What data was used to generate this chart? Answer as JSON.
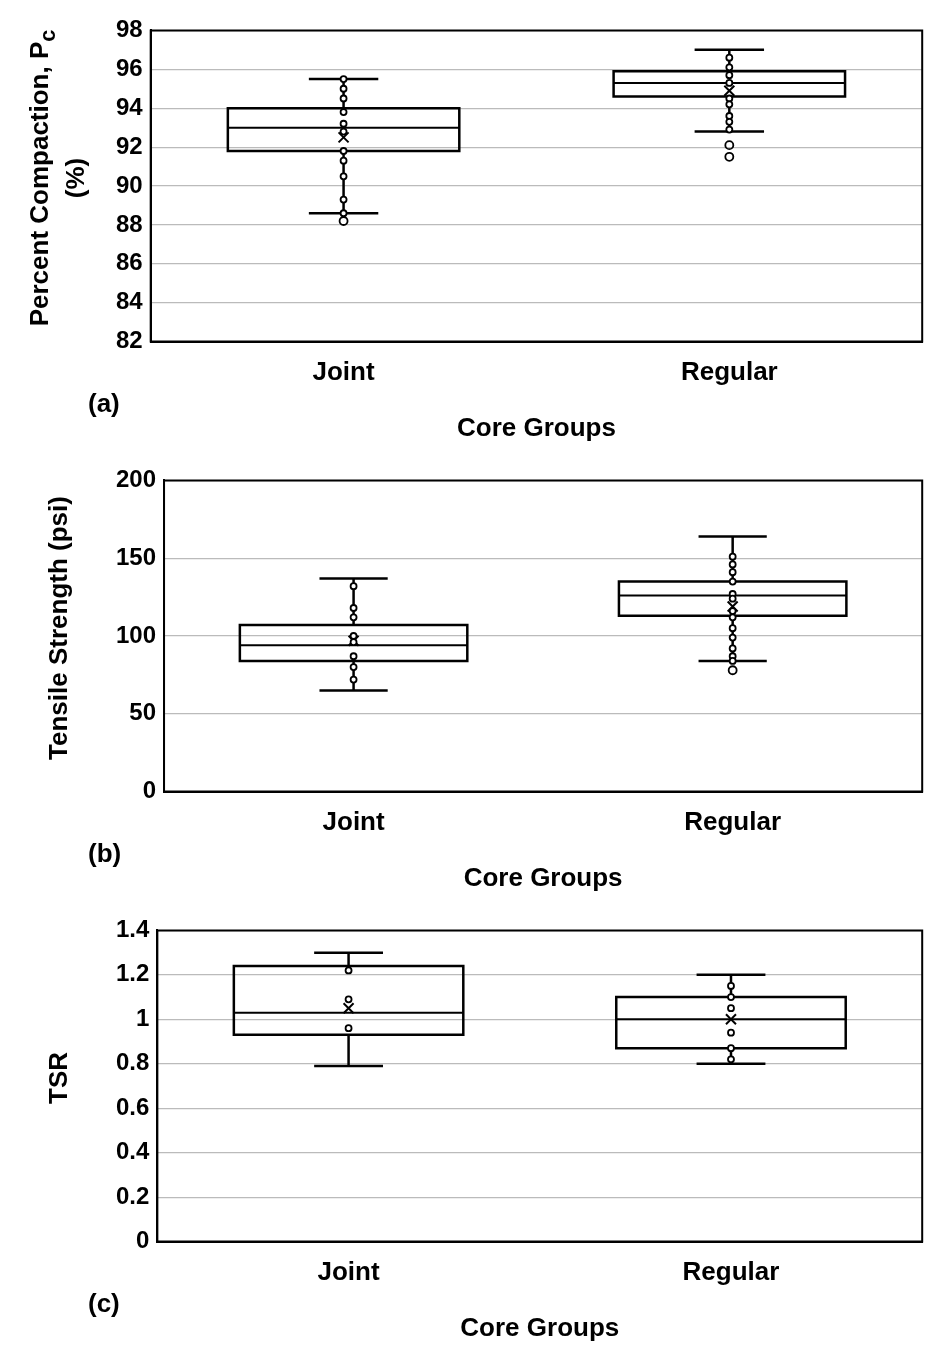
{
  "chart_data": [
    {
      "type": "box",
      "ylabel": "Percent Compaction, P$_{c}$ (%)",
      "xlabel": "Core Groups",
      "categories": [
        "Joint",
        "Regular"
      ],
      "ylim": [
        82,
        98
      ],
      "yticks": [
        82,
        84,
        86,
        88,
        90,
        92,
        94,
        96,
        98
      ],
      "grid": "y",
      "marker": "circle",
      "annotations": [
        "(a)"
      ],
      "boxes": [
        {
          "low": 88.6,
          "q1": 91.8,
          "median": 93,
          "q3": 94,
          "high": 95.5,
          "mean": 92.5,
          "outliers": [
            88.2
          ]
        },
        {
          "low": 92.8,
          "q1": 94.6,
          "median": 95.3,
          "q3": 95.9,
          "high": 97,
          "mean": 94.9,
          "outliers": [
            92.1,
            91.5
          ]
        }
      ],
      "series": [
        {
          "type": "scatter",
          "color": "#000000",
          "x": [
            "Joint",
            "Joint",
            "Joint",
            "Joint",
            "Joint",
            "Joint",
            "Joint",
            "Joint",
            "Joint",
            "Joint",
            "Joint",
            "Regular",
            "Regular",
            "Regular",
            "Regular",
            "Regular",
            "Regular",
            "Regular",
            "Regular",
            "Regular",
            "Regular"
          ],
          "values": [
            95.5,
            95,
            94.5,
            93.8,
            93.2,
            92.8,
            91.8,
            91.3,
            90.5,
            89.3,
            88.6,
            96.6,
            96.1,
            95.7,
            95.3,
            null,
            94.5,
            94.2,
            93.6,
            93.3,
            92.9
          ]
        }
      ]
    },
    {
      "type": "box",
      "ylabel": "Tensile Strength (psi)",
      "xlabel": "Core Groups",
      "categories": [
        "Joint",
        "Regular"
      ],
      "ylim": [
        0,
        200
      ],
      "yticks": [
        0,
        50,
        100,
        150,
        200
      ],
      "grid": "y",
      "marker": "circle",
      "annotations": [
        "(b)"
      ],
      "boxes": [
        {
          "low": 65,
          "q1": 84,
          "median": 94,
          "q3": 107,
          "high": 137,
          "mean": 97
        },
        {
          "low": 84,
          "q1": 113,
          "median": 126,
          "q3": 135,
          "high": 164,
          "mean": 119,
          "outliers": [
            78
          ]
        }
      ],
      "series": [
        {
          "type": "scatter",
          "color": "#000000",
          "x": [
            "Joint",
            "Joint",
            "Joint",
            "Joint",
            "Joint",
            "Joint",
            "Joint",
            "Joint",
            "Regular",
            "Regular",
            "Regular",
            "Regular",
            "Regular",
            "Regular",
            "Regular",
            "Regular",
            "Regular",
            "Regular",
            "Regular",
            "Regular",
            "Regular"
          ],
          "values": [
            132,
            118,
            112,
            100,
            96,
            87,
            80,
            72,
            151,
            146,
            141,
            135,
            127,
            124,
            116,
            112,
            105,
            99,
            92,
            87,
            84
          ]
        }
      ]
    },
    {
      "type": "box",
      "ylabel": "TSR",
      "xlabel": "Core Groups",
      "categories": [
        "Joint",
        "Regular"
      ],
      "ylim": [
        0,
        1.4
      ],
      "yticks": [
        0,
        0.2,
        0.4,
        0.6,
        0.8,
        1,
        1.2,
        1.4
      ],
      "grid": "y",
      "marker": "circle",
      "annotations": [
        "(c)"
      ],
      "boxes": [
        {
          "low": 0.79,
          "q1": 0.93,
          "median": 1.03,
          "q3": 1.24,
          "high": 1.3,
          "mean": 1.05
        },
        {
          "low": 0.8,
          "q1": 0.87,
          "median": 1,
          "q3": 1.1,
          "high": 1.2,
          "mean": 1
        }
      ],
      "series": [
        {
          "type": "scatter",
          "color": "#000000",
          "x": [
            "Joint",
            "Joint",
            "Joint",
            "Regular",
            "Regular",
            "Regular",
            "Regular",
            "Regular",
            "Regular"
          ],
          "values": [
            1.22,
            1.09,
            0.96,
            1.15,
            1.1,
            1.05,
            0.94,
            0.87,
            0.82
          ]
        }
      ]
    }
  ]
}
